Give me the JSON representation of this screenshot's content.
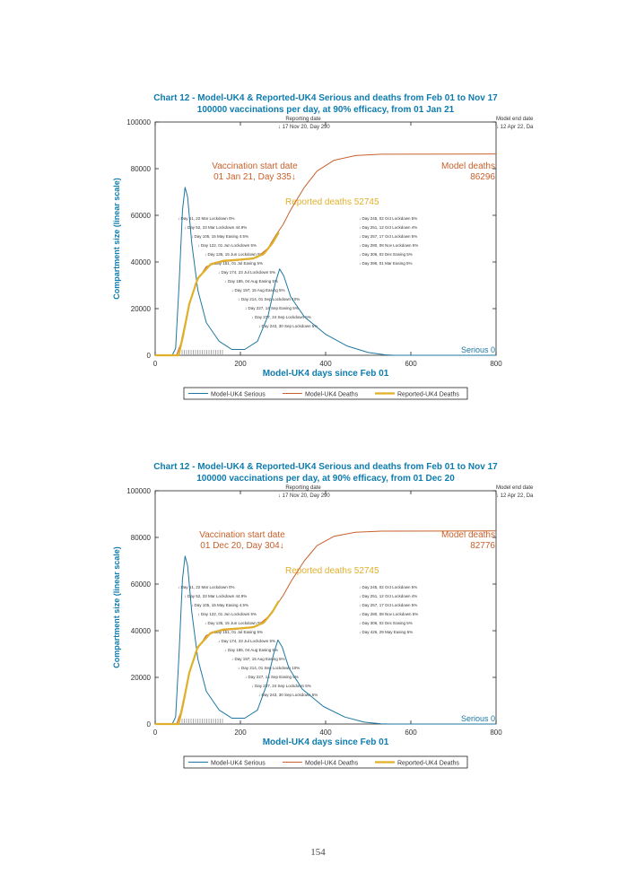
{
  "page_number": "154",
  "colors": {
    "title": "#0e7cae",
    "serious": "#1f77a0",
    "model_deaths": "#c8602a",
    "reported_deaths": "#e0b02a",
    "annotation": "#333333"
  },
  "chart_data": [
    {
      "type": "line",
      "title": "Chart 12 - Model-UK4 & Reported-UK4 Serious and deaths from Feb 01 to Nov 17",
      "subtitle": "100000 vaccinations per day, at 90% efficacy, from 01 Jan 21",
      "xlabel": "Model-UK4 days since Feb 01",
      "ylabel": "Compartment size (linear scale)",
      "xlim": [
        0,
        800
      ],
      "ylim": [
        0,
        100000
      ],
      "xticks": [
        "0",
        "200",
        "400",
        "600",
        "800"
      ],
      "yticks": [
        "0",
        "20000",
        "40000",
        "60000",
        "80000",
        "100000"
      ],
      "grid": false,
      "legend_placement": "bottom",
      "annotations": {
        "report_date": [
          "Reporting date",
          "↓ 17 Nov 20, Day 290"
        ],
        "model_end": [
          "Model end date",
          "↓ 12 Apr 22, Da"
        ],
        "vaccination": [
          "Vaccination start date",
          "01 Jan 21, Day 335↓"
        ],
        "model_deaths": [
          "Model deaths",
          "86296"
        ],
        "reported_deaths": "Reported deaths 52745",
        "serious_end": "Serious 0",
        "events": [
          "↓ Day 51, 22 Mar Lockdown 0%",
          "↓ Day 52, 23 Mar Lockdown 44.9%",
          "↓ Day 105, 15 May Easing 4.5%",
          "↓ Day 122, 01 Jun Lockdown 5%",
          "↓ Day 135, 15 Jun Lockdown 5%",
          "↓ Day 151, 01 Jul Easing 5%",
          "↓ Day 174, 23 Jul Lockdown 5%",
          "↓ Day 185, 04 Aug Easing 5%",
          "↓ Day 197, 15 Aug Easing 5%",
          "↓ Day 214, 01 Sep Lockdown 10%",
          "↓ Day 227, 14 Sep Easing 5%",
          "↓ Day 237, 24 Sep Lockdown 5%",
          "↓ Day 243, 30 Sep Lockdown 5%",
          "↓ Day 245, 02 Oct Lockdown 5%",
          "↓ Day 251, 12 Oct Lockdown 4%",
          "↓ Day 257, 17 Oct Lockdown 5%",
          "↓ Day 280, 08 Nov Lockdown 5%",
          "↓ Day 306, 02 Dec Easing 5%",
          "↓ Day 396, 01 Mar Easing 5%"
        ]
      },
      "series": [
        {
          "name": "Model-UK4 Serious",
          "color": "#1f77a0",
          "points": [
            [
              0,
              0
            ],
            [
              40,
              0
            ],
            [
              48,
              3000
            ],
            [
              56,
              30000
            ],
            [
              64,
              62000
            ],
            [
              70,
              72000
            ],
            [
              76,
              68000
            ],
            [
              86,
              48000
            ],
            [
              100,
              28000
            ],
            [
              120,
              14000
            ],
            [
              150,
              6000
            ],
            [
              180,
              2500
            ],
            [
              210,
              2500
            ],
            [
              240,
              6000
            ],
            [
              265,
              17000
            ],
            [
              282,
              31000
            ],
            [
              292,
              37000
            ],
            [
              302,
              34000
            ],
            [
              318,
              25000
            ],
            [
              350,
              16500
            ],
            [
              400,
              9000
            ],
            [
              450,
              4000
            ],
            [
              500,
              1200
            ],
            [
              540,
              200
            ],
            [
              560,
              0
            ],
            [
              800,
              0
            ]
          ]
        },
        {
          "name": "Model-UK4 Deaths",
          "color": "#c8602a",
          "points": [
            [
              0,
              0
            ],
            [
              50,
              0
            ],
            [
              60,
              5000
            ],
            [
              75,
              18000
            ],
            [
              95,
              31000
            ],
            [
              120,
              38000
            ],
            [
              150,
              40000
            ],
            [
              200,
              40800
            ],
            [
              240,
              42000
            ],
            [
              265,
              46000
            ],
            [
              285,
              52000
            ],
            [
              300,
              56000
            ],
            [
              320,
              63000
            ],
            [
              350,
              72000
            ],
            [
              380,
              79000
            ],
            [
              420,
              83600
            ],
            [
              470,
              85600
            ],
            [
              530,
              86200
            ],
            [
              800,
              86296
            ]
          ]
        },
        {
          "name": "Reported-UK4 Deaths",
          "color": "#e0b02a",
          "points": [
            [
              0,
              0
            ],
            [
              55,
              0
            ],
            [
              65,
              8000
            ],
            [
              80,
              22000
            ],
            [
              100,
              33000
            ],
            [
              130,
              39000
            ],
            [
              160,
              40500
            ],
            [
              200,
              41000
            ],
            [
              230,
              41500
            ],
            [
              255,
              43500
            ],
            [
              275,
              48000
            ],
            [
              290,
              52745
            ]
          ]
        }
      ]
    },
    {
      "type": "line",
      "title": "Chart 12 - Model-UK4 & Reported-UK4 Serious and deaths from Feb 01 to Nov 17",
      "subtitle": "100000 vaccinations per day, at 90% efficacy, from 01 Dec 20",
      "xlabel": "Model-UK4 days since Feb 01",
      "ylabel": "Compartment size (linear scale)",
      "xlim": [
        0,
        800
      ],
      "ylim": [
        0,
        100000
      ],
      "xticks": [
        "0",
        "200",
        "400",
        "600",
        "800"
      ],
      "yticks": [
        "0",
        "20000",
        "40000",
        "60000",
        "80000",
        "100000"
      ],
      "grid": false,
      "legend_placement": "bottom",
      "annotations": {
        "report_date": [
          "Reporting date",
          "↓ 17 Nov 20, Day 290"
        ],
        "model_end": [
          "Model end date",
          "↓ 12 Apr 22, Da"
        ],
        "vaccination": [
          "Vaccination start date",
          "01 Dec 20, Day 304↓"
        ],
        "model_deaths": [
          "Model deaths",
          "82776"
        ],
        "reported_deaths": "Reported deaths 52745",
        "serious_end": "Serious 0",
        "events": [
          "↓ Day 51, 22 Mar Lockdown 0%",
          "↓ Day 52, 23 Mar Lockdown 44.9%",
          "↓ Day 105, 15 May Easing 4.5%",
          "↓ Day 122, 01 Jun Lockdown 5%",
          "↓ Day 135, 15 Jun Lockdown 5%",
          "↓ Day 151, 01 Jul Easing 5%",
          "↓ Day 174, 23 Jul Lockdown 5%",
          "↓ Day 185, 04 Aug Easing 5%",
          "↓ Day 197, 15 Aug Easing 5%",
          "↓ Day 214, 01 Sep Lockdown 10%",
          "↓ Day 227, 14 Sep Easing 5%",
          "↓ Day 237, 24 Sep Lockdown 5%",
          "↓ Day 243, 30 Sep Lockdown 5%",
          "↓ Day 245, 02 Oct Lockdown 5%",
          "↓ Day 251, 12 Oct Lockdown 4%",
          "↓ Day 257, 17 Oct Lockdown 5%",
          "↓ Day 280, 08 Nov Lockdown 5%",
          "↓ Day 306, 02 Dec Easing 5%",
          "↓ Day 426, 29 May Easing 5%"
        ]
      },
      "series": [
        {
          "name": "Model-UK4 Serious",
          "color": "#1f77a0",
          "points": [
            [
              0,
              0
            ],
            [
              40,
              0
            ],
            [
              48,
              3000
            ],
            [
              56,
              30000
            ],
            [
              64,
              62000
            ],
            [
              70,
              72000
            ],
            [
              76,
              68000
            ],
            [
              86,
              48000
            ],
            [
              100,
              28000
            ],
            [
              120,
              14000
            ],
            [
              150,
              6000
            ],
            [
              180,
              2500
            ],
            [
              210,
              2500
            ],
            [
              240,
              6000
            ],
            [
              262,
              17000
            ],
            [
              278,
              30000
            ],
            [
              288,
              36000
            ],
            [
              298,
              33000
            ],
            [
              314,
              24000
            ],
            [
              345,
              15000
            ],
            [
              395,
              7500
            ],
            [
              445,
              3000
            ],
            [
              490,
              800
            ],
            [
              530,
              100
            ],
            [
              550,
              0
            ],
            [
              800,
              0
            ]
          ]
        },
        {
          "name": "Model-UK4 Deaths",
          "color": "#c8602a",
          "points": [
            [
              0,
              0
            ],
            [
              50,
              0
            ],
            [
              60,
              5000
            ],
            [
              75,
              18000
            ],
            [
              95,
              31000
            ],
            [
              120,
              38000
            ],
            [
              150,
              40000
            ],
            [
              200,
              40800
            ],
            [
              240,
              42000
            ],
            [
              265,
              46000
            ],
            [
              285,
              51000
            ],
            [
              300,
              55000
            ],
            [
              320,
              61500
            ],
            [
              350,
              70000
            ],
            [
              380,
              76500
            ],
            [
              420,
              80500
            ],
            [
              470,
              82200
            ],
            [
              530,
              82700
            ],
            [
              800,
              82776
            ]
          ]
        },
        {
          "name": "Reported-UK4 Deaths",
          "color": "#e0b02a",
          "points": [
            [
              0,
              0
            ],
            [
              55,
              0
            ],
            [
              65,
              8000
            ],
            [
              80,
              22000
            ],
            [
              100,
              33000
            ],
            [
              130,
              39000
            ],
            [
              160,
              40500
            ],
            [
              200,
              41000
            ],
            [
              230,
              41500
            ],
            [
              255,
              43500
            ],
            [
              275,
              48000
            ],
            [
              290,
              52745
            ]
          ]
        }
      ]
    }
  ]
}
